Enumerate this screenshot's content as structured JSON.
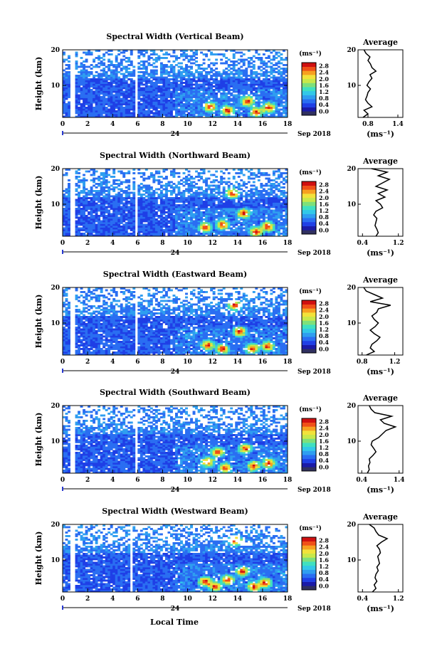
{
  "figure": {
    "xaxis_label": "Local Time",
    "day_label": "24",
    "month_label": "Sep 2018"
  },
  "colorbar": {
    "unit": "(ms⁻¹)",
    "ticks": [
      "0.0",
      "0.4",
      "0.8",
      "1.2",
      "1.6",
      "2.0",
      "2.4",
      "2.8"
    ],
    "colors": [
      "#303060",
      "#1a1aa8",
      "#1f3fe6",
      "#2a6ef2",
      "#2f9ef0",
      "#32c8e8",
      "#3fe0c0",
      "#7ee07a",
      "#c8e84a",
      "#f2e23a",
      "#f7a020",
      "#f05018",
      "#d01010"
    ]
  },
  "chart_data": [
    {
      "type": "heatmap",
      "title": "Spectral Width (Vertical Beam)",
      "ylabel": "Height (km)",
      "xlabel": "Local Time",
      "xlim": [
        0,
        18
      ],
      "ylim": [
        1,
        20
      ],
      "xticks": [
        "0",
        "2",
        "4",
        "6",
        "8",
        "10",
        "12",
        "14",
        "16",
        "18"
      ],
      "yticks": [
        "10",
        "20"
      ],
      "clim": [
        0,
        3.0
      ],
      "data_gaps_hours": [
        [
          0.6,
          0.9
        ],
        [
          5.8,
          6.05
        ]
      ],
      "hotspots": [
        [
          11.8,
          4.0
        ],
        [
          13.2,
          3.0
        ],
        [
          14.8,
          5.5
        ],
        [
          15.5,
          2.5
        ],
        [
          16.5,
          3.8
        ]
      ],
      "average_profile": {
        "title": "Average",
        "xlabel": "(ms⁻¹)",
        "xticks": [
          "0.8",
          "1.4"
        ],
        "xlim": [
          0.6,
          1.5
        ],
        "height_km": [
          1,
          2,
          3,
          4,
          5,
          6,
          7,
          8,
          9,
          10,
          11,
          12,
          13,
          14,
          15,
          16,
          17,
          18,
          19,
          20
        ],
        "width": [
          0.7,
          0.8,
          0.72,
          0.88,
          0.8,
          0.75,
          0.78,
          0.8,
          0.85,
          0.78,
          0.82,
          0.88,
          0.84,
          0.96,
          0.88,
          0.85,
          0.8,
          0.84,
          0.76,
          0.72
        ]
      }
    },
    {
      "type": "heatmap",
      "title": "Spectral Width (Northward Beam)",
      "ylabel": "Height (km)",
      "xlabel": "Local Time",
      "xlim": [
        0,
        18
      ],
      "ylim": [
        1,
        20
      ],
      "xticks": [
        "0",
        "2",
        "4",
        "6",
        "8",
        "10",
        "12",
        "14",
        "16",
        "18"
      ],
      "yticks": [
        "10",
        "20"
      ],
      "clim": [
        0,
        3.0
      ],
      "data_gaps_hours": [
        [
          0.6,
          0.9
        ],
        [
          5.8,
          6.05
        ]
      ],
      "hotspots": [
        [
          11.4,
          3.5
        ],
        [
          12.8,
          4.2
        ],
        [
          13.6,
          13.0
        ],
        [
          14.5,
          7.5
        ],
        [
          15.5,
          2.3
        ],
        [
          16.4,
          3.8
        ]
      ],
      "average_profile": {
        "title": "Average",
        "xlabel": "(ms⁻¹)",
        "xticks": [
          "0.4",
          "1.2"
        ],
        "xlim": [
          0.3,
          1.3
        ],
        "height_km": [
          1,
          2,
          3,
          4,
          5,
          6,
          7,
          8,
          9,
          10,
          11,
          12,
          13,
          14,
          15,
          16,
          17,
          18,
          19,
          20
        ],
        "width": [
          0.7,
          0.75,
          0.72,
          0.68,
          0.7,
          0.72,
          0.65,
          0.7,
          0.85,
          0.8,
          0.7,
          0.9,
          0.75,
          0.95,
          0.7,
          0.85,
          1.0,
          0.75,
          0.95,
          0.6
        ]
      }
    },
    {
      "type": "heatmap",
      "title": "Spectral Width (Eastward Beam)",
      "ylabel": "Height (km)",
      "xlabel": "Local Time",
      "xlim": [
        0,
        18
      ],
      "ylim": [
        1,
        20
      ],
      "xticks": [
        "0",
        "2",
        "4",
        "6",
        "8",
        "10",
        "12",
        "14",
        "16",
        "18"
      ],
      "yticks": [
        "10",
        "20"
      ],
      "clim": [
        0,
        3.0
      ],
      "data_gaps_hours": [
        [
          0.6,
          0.9
        ],
        [
          5.8,
          6.05
        ]
      ],
      "hotspots": [
        [
          11.6,
          3.8
        ],
        [
          12.8,
          2.8
        ],
        [
          13.8,
          15.0
        ],
        [
          14.2,
          7.6
        ],
        [
          15.2,
          2.8
        ],
        [
          16.4,
          3.5
        ]
      ],
      "average_profile": {
        "title": "Average",
        "xlabel": "(ms⁻¹)",
        "xticks": [
          "0.8",
          "1.2"
        ],
        "xlim": [
          0.75,
          1.3
        ],
        "height_km": [
          1,
          2,
          3,
          4,
          5,
          6,
          7,
          8,
          9,
          10,
          11,
          12,
          13,
          14,
          15,
          16,
          17,
          18,
          19,
          20
        ],
        "width": [
          0.85,
          0.95,
          0.9,
          0.92,
          0.98,
          1.02,
          0.95,
          0.9,
          0.96,
          1.0,
          0.95,
          0.92,
          0.98,
          1.0,
          1.15,
          0.9,
          1.05,
          0.95,
          0.85,
          0.82
        ]
      }
    },
    {
      "type": "heatmap",
      "title": "Spectral Width (Southward Beam)",
      "ylabel": "Height (km)",
      "xlabel": "Local Time",
      "xlim": [
        0,
        18
      ],
      "ylim": [
        1,
        20
      ],
      "xticks": [
        "0",
        "2",
        "4",
        "6",
        "8",
        "10",
        "12",
        "14",
        "16",
        "18"
      ],
      "yticks": [
        "10",
        "20"
      ],
      "clim": [
        0,
        3.0
      ],
      "data_gaps_hours": [
        [
          0.6,
          0.9
        ],
        [
          5.8,
          6.05
        ]
      ],
      "hotspots": [
        [
          11.6,
          4.2
        ],
        [
          12.4,
          7.0
        ],
        [
          13.0,
          2.5
        ],
        [
          14.6,
          8.0
        ],
        [
          15.3,
          3.0
        ],
        [
          16.5,
          3.8
        ]
      ],
      "average_profile": {
        "title": "Average",
        "xlabel": "(ms⁻¹)",
        "xticks": [
          "0.4",
          "1.4"
        ],
        "xlim": [
          0.3,
          1.5
        ],
        "height_km": [
          1,
          2,
          3,
          4,
          5,
          6,
          7,
          8,
          9,
          10,
          11,
          12,
          13,
          14,
          15,
          16,
          17,
          18,
          19,
          20
        ],
        "width": [
          0.55,
          0.6,
          0.58,
          0.62,
          0.6,
          0.7,
          0.78,
          0.72,
          0.65,
          0.68,
          0.85,
          0.95,
          1.05,
          1.3,
          1.0,
          0.9,
          1.2,
          0.75,
          0.65,
          0.6
        ]
      }
    },
    {
      "type": "heatmap",
      "title": "Spectral Width (Westward Beam)",
      "ylabel": "Height (km)",
      "xlabel": "Local Time",
      "xlim": [
        0,
        18
      ],
      "ylim": [
        1,
        20
      ],
      "xticks": [
        "0",
        "2",
        "4",
        "6",
        "8",
        "10",
        "12",
        "14",
        "16",
        "18"
      ],
      "yticks": [
        "10",
        "20"
      ],
      "clim": [
        0,
        3.0
      ],
      "data_gaps_hours": [
        [
          0.6,
          0.9
        ],
        [
          5.4,
          5.65
        ]
      ],
      "hotspots": [
        [
          11.4,
          4.0
        ],
        [
          12.2,
          2.6
        ],
        [
          13.2,
          4.5
        ],
        [
          13.8,
          15.5
        ],
        [
          14.4,
          6.8
        ],
        [
          15.3,
          2.5
        ],
        [
          16.2,
          3.6
        ]
      ],
      "average_profile": {
        "title": "Average",
        "xlabel": "(ms⁻¹)",
        "xticks": [
          "0.4",
          "1.2"
        ],
        "xlim": [
          0.3,
          1.3
        ],
        "height_km": [
          1,
          2,
          3,
          4,
          5,
          6,
          7,
          8,
          9,
          10,
          11,
          12,
          13,
          14,
          15,
          16,
          17,
          18,
          19,
          20
        ],
        "width": [
          0.62,
          0.7,
          0.66,
          0.72,
          0.68,
          0.7,
          0.75,
          0.72,
          0.78,
          0.76,
          0.74,
          0.8,
          0.78,
          0.72,
          0.82,
          0.95,
          0.76,
          0.7,
          0.66,
          0.55
        ]
      }
    }
  ]
}
